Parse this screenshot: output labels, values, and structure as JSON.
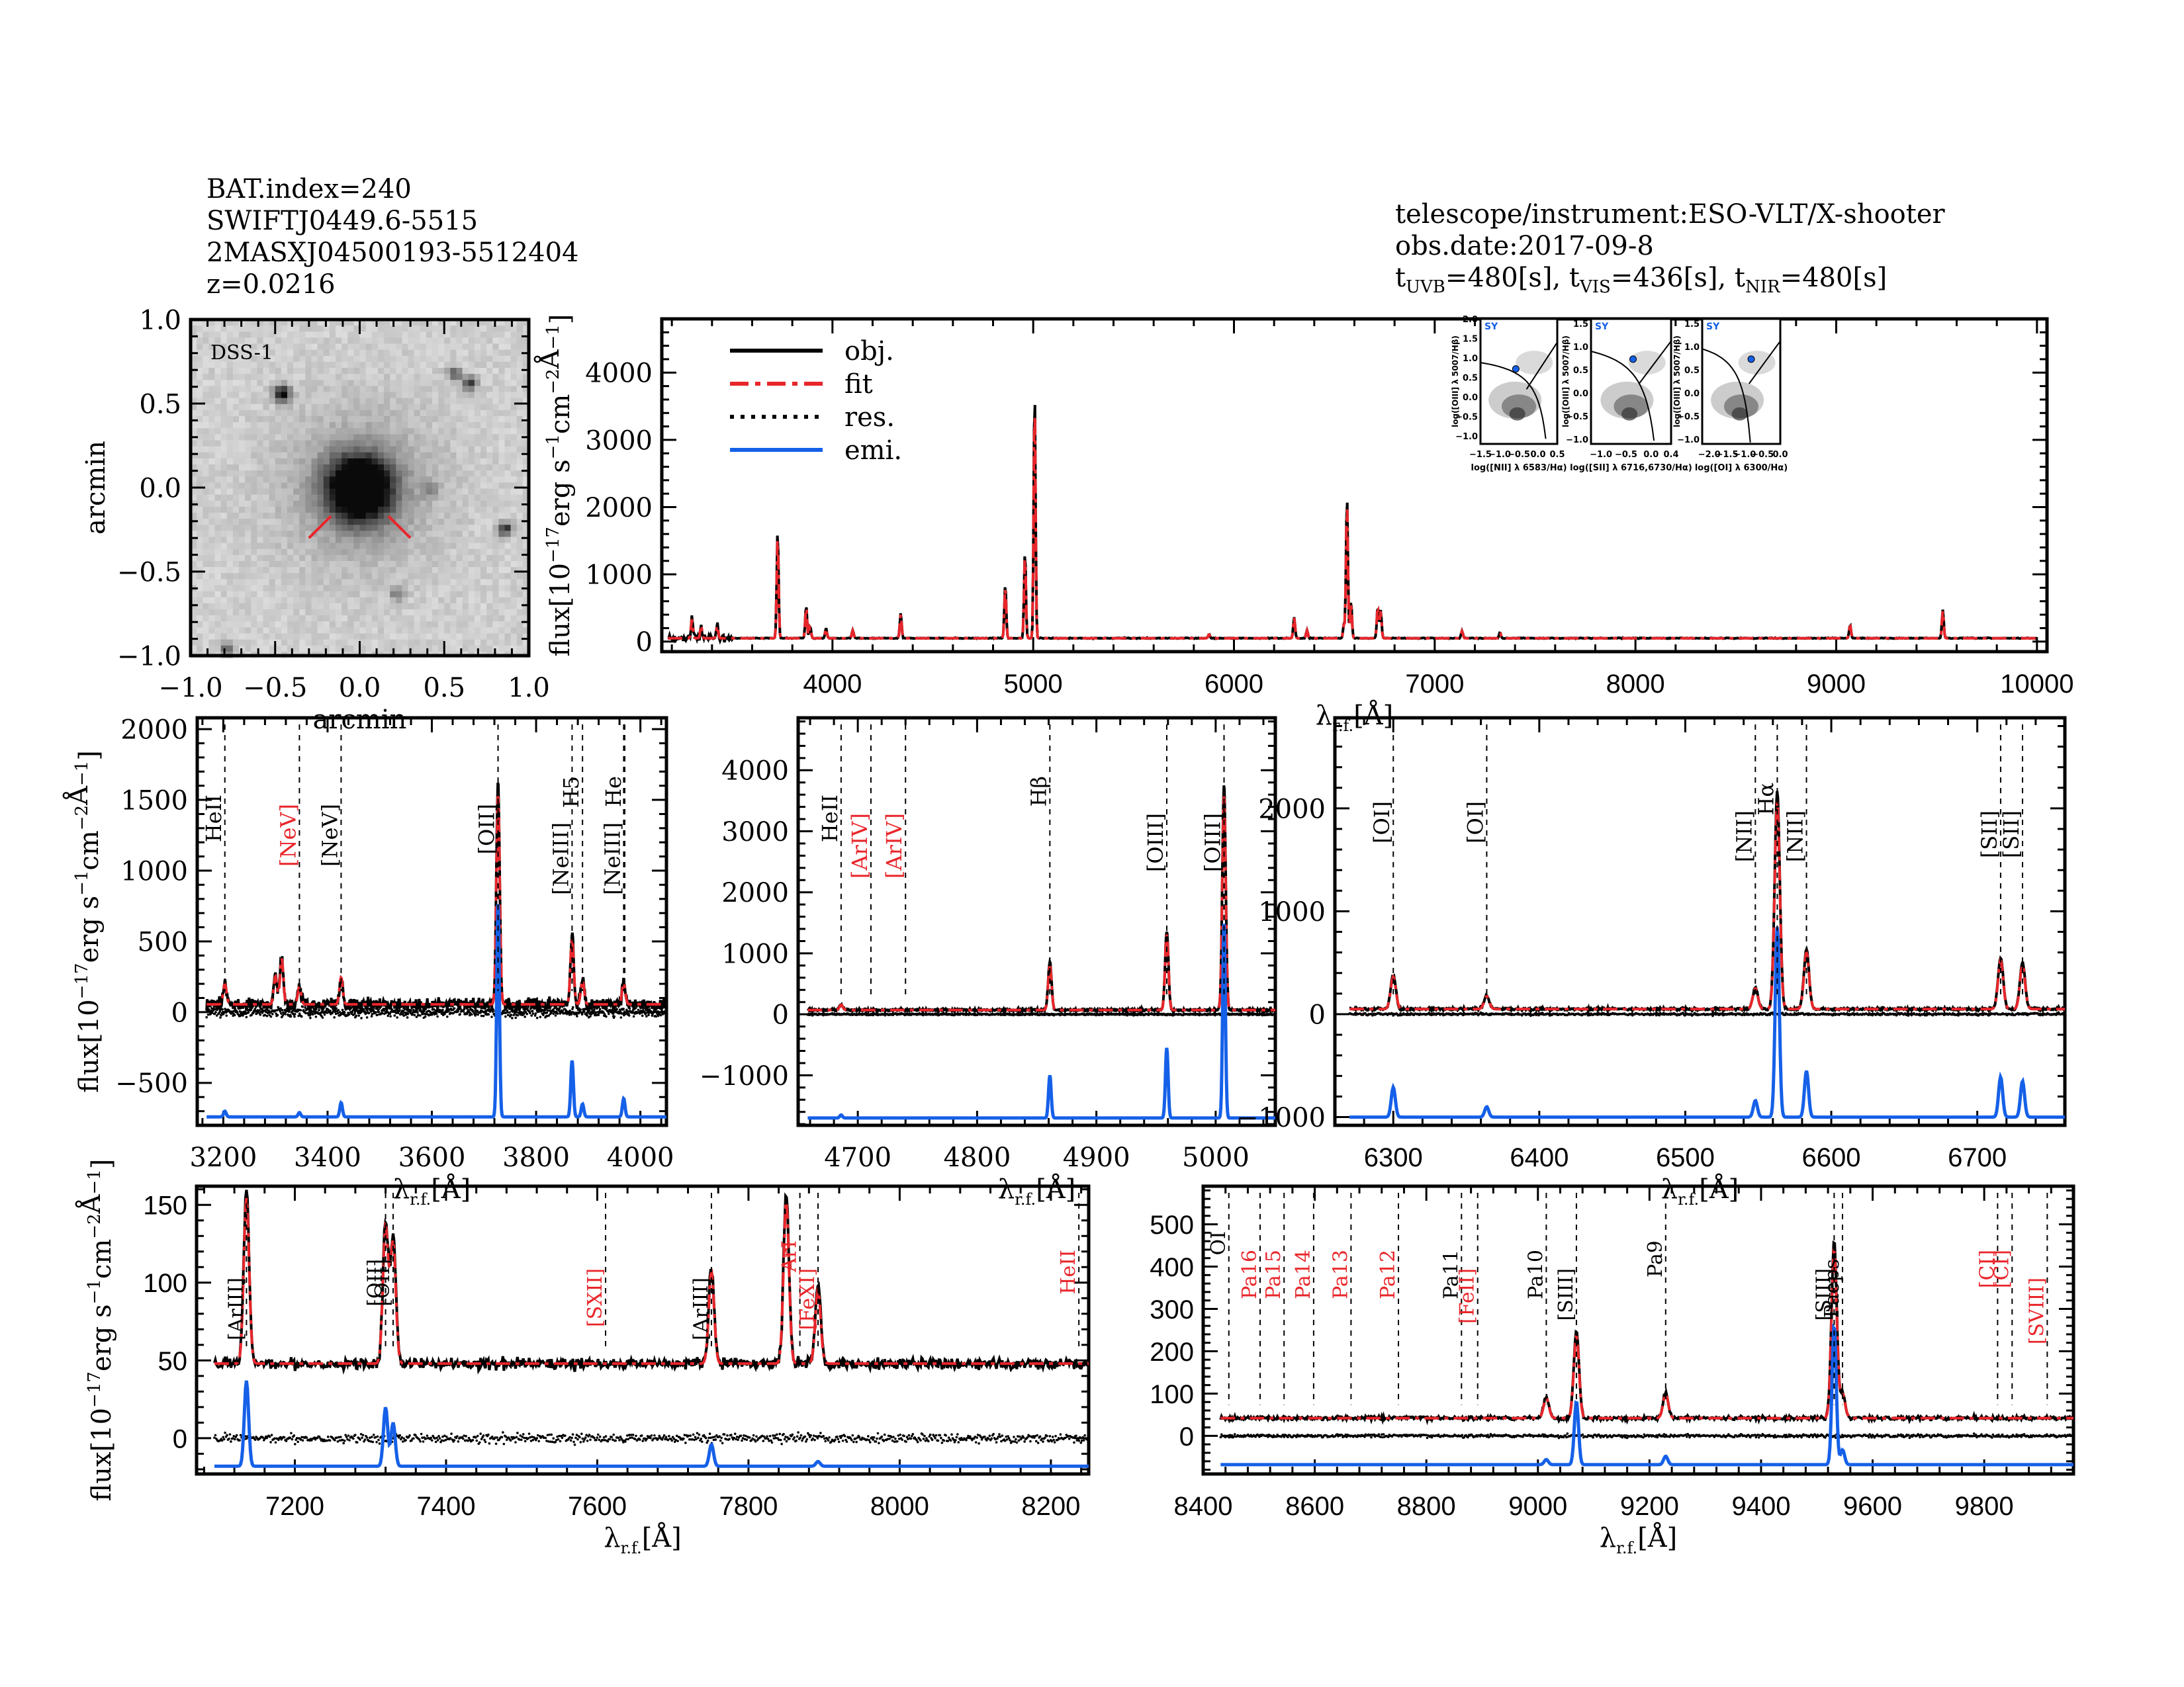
{
  "header_left": {
    "bat_index": "BAT.index=240",
    "swift_name": "SWIFTJ0449.6-5515",
    "counterpart": "2MASXJ04500193-5512404",
    "redshift": "z=0.0216"
  },
  "header_right": {
    "instrument": "telescope/instrument:ESO-VLT/X-shooter",
    "obs_date": "obs.date:2017-09-8",
    "exposure": [
      {
        "band": "UVB",
        "value": "=480[s]"
      },
      {
        "band": "VIS",
        "value": "=436[s]"
      },
      {
        "band": "NIR",
        "value": "=480[s]"
      }
    ]
  },
  "colors": {
    "obj": "#000000",
    "fit": "#e8262b",
    "res": "#000000",
    "emi": "#1560e8",
    "red_label": "#e8262b",
    "sy_label": "#1560e8"
  },
  "chart_data": [
    {
      "id": "dss-image",
      "type": "image",
      "title": "DSS-1",
      "xlabel": "arcmin",
      "ylabel": "arcmin",
      "xlim": [
        -1.0,
        1.0
      ],
      "ylim": [
        -1.0,
        1.0
      ],
      "xticks": [
        "-1.0",
        "-0.5",
        "0.0",
        "0.5",
        "1.0"
      ],
      "yticks": [
        "-1.0",
        "-0.5",
        "0.0",
        "0.5",
        "1.0"
      ],
      "sources": [
        {
          "x": 0.0,
          "y": 0.0,
          "brightness": 1.0,
          "size": 0.13
        },
        {
          "x": -0.46,
          "y": 0.56,
          "brightness": 0.85,
          "size": 0.035
        },
        {
          "x": 0.56,
          "y": 0.68,
          "brightness": 0.5,
          "size": 0.03
        },
        {
          "x": 0.65,
          "y": 0.62,
          "brightness": 0.65,
          "size": 0.03
        },
        {
          "x": 0.86,
          "y": -0.24,
          "brightness": 0.7,
          "size": 0.03
        },
        {
          "x": 0.42,
          "y": -0.01,
          "brightness": 0.3,
          "size": 0.03
        },
        {
          "x": 0.22,
          "y": -0.62,
          "brightness": 0.35,
          "size": 0.03
        },
        {
          "x": -0.78,
          "y": -0.95,
          "brightness": 0.5,
          "size": 0.03
        }
      ]
    },
    {
      "id": "full-spectrum",
      "type": "line",
      "xlabel": "λr.f.[Å]",
      "ylabel": "flux[10⁻¹⁷erg s⁻¹cm⁻²Å⁻¹]",
      "xlim": [
        3150,
        10050
      ],
      "ylim": [
        -150,
        4800
      ],
      "xticks": [
        4000,
        5000,
        6000,
        7000,
        8000,
        9000,
        10000
      ],
      "yticks": [
        0,
        1000,
        2000,
        3000,
        4000
      ],
      "continuum": 50,
      "legend": [
        {
          "label": "obj.",
          "style": "solid-black"
        },
        {
          "label": "fit",
          "style": "dashdot-red"
        },
        {
          "label": "res.",
          "style": "dotted-black"
        },
        {
          "label": "emi.",
          "style": "solid-blue"
        }
      ],
      "legend_position": "top-left",
      "peaks": [
        {
          "x": 3300,
          "y": 300
        },
        {
          "x": 3346,
          "y": 200
        },
        {
          "x": 3426,
          "y": 200
        },
        {
          "x": 3727,
          "y": 1600
        },
        {
          "x": 3869,
          "y": 490
        },
        {
          "x": 3889,
          "y": 180
        },
        {
          "x": 3968,
          "y": 150
        },
        {
          "x": 4101,
          "y": 120
        },
        {
          "x": 4340,
          "y": 370
        },
        {
          "x": 4861,
          "y": 810
        },
        {
          "x": 4959,
          "y": 1290
        },
        {
          "x": 5007,
          "y": 3700
        },
        {
          "x": 5876,
          "y": 60
        },
        {
          "x": 6300,
          "y": 320
        },
        {
          "x": 6364,
          "y": 120
        },
        {
          "x": 6548,
          "y": 210
        },
        {
          "x": 6563,
          "y": 2120
        },
        {
          "x": 6583,
          "y": 560
        },
        {
          "x": 6716,
          "y": 470
        },
        {
          "x": 6731,
          "y": 420
        },
        {
          "x": 7136,
          "y": 110
        },
        {
          "x": 7325,
          "y": 90
        },
        {
          "x": 9069,
          "y": 200
        },
        {
          "x": 9531,
          "y": 420
        }
      ],
      "insets": [
        {
          "id": "bpt-nii",
          "label": "SY",
          "xlabel": "log([NII] λ 6583/Hα)",
          "ylabel": "log([OIII] λ 5007/Hβ)",
          "xlim": [
            -1.5,
            0.5
          ],
          "ylim": [
            -1.2,
            2.0
          ],
          "xticks": [
            -1.5,
            -1.0,
            -0.5,
            0.0,
            0.5
          ],
          "yticks": [
            -1.0,
            -0.5,
            0.0,
            0.5,
            1.0,
            1.5,
            2.0
          ],
          "point": {
            "x": -0.58,
            "y": 0.72
          }
        },
        {
          "id": "bpt-sii",
          "label": "SY",
          "xlabel": "log([SII] λ 6716,6730/Hα)",
          "ylabel": "log([OIII] λ 5007/Hβ)",
          "xlim": [
            -1.2,
            0.4
          ],
          "ylim": [
            -1.1,
            1.6
          ],
          "xticks": [
            -1.0,
            -0.5,
            0.0,
            0.4
          ],
          "yticks": [
            -1.0,
            -0.5,
            0.0,
            0.5,
            1.0,
            1.5
          ],
          "point": {
            "x": -0.36,
            "y": 0.73
          }
        },
        {
          "id": "bpt-oi",
          "label": "SY",
          "xlabel": "log([OI] λ 6300/Hα)",
          "ylabel": "log([OIII] λ 5007/Hβ)",
          "xlim": [
            -2.2,
            0.0
          ],
          "ylim": [
            -1.1,
            1.6
          ],
          "xticks": [
            -2.0,
            -1.5,
            -1.0,
            -0.5,
            0.0
          ],
          "yticks": [
            -1.0,
            -0.5,
            0.0,
            0.5,
            1.0,
            1.5
          ],
          "point": {
            "x": -0.82,
            "y": 0.73
          }
        }
      ]
    },
    {
      "id": "zoom-3200-4000",
      "type": "line",
      "xlabel": "λr.f.[Å]",
      "ylabel": "flux[10⁻¹⁷erg s⁻¹cm⁻²Å⁻¹]",
      "xlim": [
        3150,
        4050
      ],
      "ylim": [
        -800,
        2080
      ],
      "xticks": [
        3200,
        3400,
        3600,
        3800,
        4000
      ],
      "yticks": [
        -500,
        0,
        500,
        1000,
        1500,
        2000
      ],
      "continuum": 55,
      "emi_offset": -740,
      "noise": 35,
      "lines": [
        {
          "label": "HeII",
          "x": 3203,
          "color": "black"
        },
        {
          "label": "[NeV]",
          "x": 3346,
          "color": "red"
        },
        {
          "label": "[NeV]",
          "x": 3426,
          "color": "black"
        },
        {
          "label": "[OII]",
          "x": 3727,
          "color": "black"
        },
        {
          "label": "[NeIII]",
          "x": 3869,
          "color": "black"
        },
        {
          "label": "H5",
          "x": 3889,
          "color": "black"
        },
        {
          "label": "[NeIII]",
          "x": 3968,
          "color": "black"
        },
        {
          "label": "He",
          "x": 3970,
          "color": "black"
        }
      ],
      "peaks": [
        {
          "x": 3203,
          "obj": 150,
          "emi": 40
        },
        {
          "x": 3300,
          "obj": 210,
          "emi": 0
        },
        {
          "x": 3312,
          "obj": 340,
          "emi": 0
        },
        {
          "x": 3346,
          "obj": 130,
          "emi": 30
        },
        {
          "x": 3426,
          "obj": 200,
          "emi": 100
        },
        {
          "x": 3727,
          "obj": 1560,
          "emi": 1520
        },
        {
          "x": 3869,
          "obj": 490,
          "emi": 400
        },
        {
          "x": 3889,
          "obj": 180,
          "emi": 90
        },
        {
          "x": 3968,
          "obj": 160,
          "emi": 130
        }
      ]
    },
    {
      "id": "zoom-hbeta-oiii",
      "type": "line",
      "xlabel": "λr.f.[Å]",
      "ylabel": "",
      "xlim": [
        4650,
        5050
      ],
      "ylim": [
        -1820,
        4860
      ],
      "xticks": [
        4700,
        4800,
        4900,
        5000
      ],
      "yticks": [
        -1000,
        0,
        1000,
        2000,
        3000,
        4000
      ],
      "continuum": 70,
      "emi_offset": -1700,
      "noise": 15,
      "lines": [
        {
          "label": "HeII",
          "x": 4686,
          "color": "black"
        },
        {
          "label": "[ArIV]",
          "x": 4711,
          "color": "red"
        },
        {
          "label": "[ArIV]",
          "x": 4740,
          "color": "red"
        },
        {
          "label": "Hβ",
          "x": 4861,
          "color": "black"
        },
        {
          "label": "[OIII]",
          "x": 4959,
          "color": "black"
        },
        {
          "label": "[OIII]",
          "x": 5007,
          "color": "black"
        }
      ],
      "peaks": [
        {
          "x": 4686,
          "obj": 90,
          "emi": 50
        },
        {
          "x": 4861,
          "obj": 800,
          "emi": 700
        },
        {
          "x": 4959,
          "obj": 1300,
          "emi": 1150
        },
        {
          "x": 5007,
          "obj": 3700,
          "emi": 3200
        }
      ]
    },
    {
      "id": "zoom-halpha",
      "type": "line",
      "xlabel": "λr.f.[Å]",
      "ylabel": "",
      "xlim": [
        6260,
        6760
      ],
      "ylim": [
        -1080,
        2880
      ],
      "xticks": [
        6300,
        6400,
        6500,
        6600,
        6700
      ],
      "yticks": [
        -1000,
        0,
        1000,
        2000
      ],
      "continuum": 50,
      "emi_offset": -1000,
      "noise": 12,
      "lines": [
        {
          "label": "[OI]",
          "x": 6300,
          "color": "black"
        },
        {
          "label": "[OI]",
          "x": 6364,
          "color": "black"
        },
        {
          "label": "[NII]",
          "x": 6548,
          "color": "black"
        },
        {
          "label": "Hα",
          "x": 6563,
          "color": "black"
        },
        {
          "label": "[NII]",
          "x": 6583,
          "color": "black"
        },
        {
          "label": "[SII]",
          "x": 6716,
          "color": "black"
        },
        {
          "label": "[SII]",
          "x": 6731,
          "color": "black"
        }
      ],
      "peaks": [
        {
          "x": 6300,
          "obj": 330,
          "emi": 290
        },
        {
          "x": 6364,
          "obj": 130,
          "emi": 100
        },
        {
          "x": 6548,
          "obj": 210,
          "emi": 160
        },
        {
          "x": 6563,
          "obj": 2120,
          "emi": 1850
        },
        {
          "x": 6583,
          "obj": 580,
          "emi": 450
        },
        {
          "x": 6716,
          "obj": 500,
          "emi": 390
        },
        {
          "x": 6731,
          "obj": 450,
          "emi": 350
        }
      ]
    },
    {
      "id": "zoom-7100-8250",
      "type": "line",
      "xlabel": "λr.f.[Å]",
      "ylabel": "flux[10⁻¹⁷erg s⁻¹cm⁻²Å⁻¹]",
      "xlim": [
        7070,
        8250
      ],
      "ylim": [
        -23,
        162
      ],
      "xticks": [
        7200,
        7400,
        7600,
        7800,
        8000,
        8200
      ],
      "yticks": [
        0,
        50,
        100,
        150
      ],
      "continuum": 48,
      "emi_offset": -18,
      "noise": 3,
      "lines": [
        {
          "label": "[ArIII]",
          "x": 7136,
          "color": "black"
        },
        {
          "label": "[OII]",
          "x": 7320,
          "color": "black"
        },
        {
          "label": "[OII]",
          "x": 7330,
          "color": "black"
        },
        {
          "label": "[SXII]",
          "x": 7611,
          "color": "red"
        },
        {
          "label": "[ArIII]",
          "x": 7751,
          "color": "black"
        },
        {
          "label": "ArI",
          "x": 7868,
          "color": "red"
        },
        {
          "label": "[FeXI]",
          "x": 7892,
          "color": "red"
        },
        {
          "label": "HeII",
          "x": 8237,
          "color": "red"
        }
      ],
      "peaks": [
        {
          "x": 7136,
          "obj": 112,
          "emi": 55
        },
        {
          "x": 7320,
          "obj": 92,
          "emi": 38
        },
        {
          "x": 7330,
          "obj": 82,
          "emi": 28
        },
        {
          "x": 7751,
          "obj": 62,
          "emi": 14
        },
        {
          "x": 7850,
          "obj": 110,
          "emi": 0
        },
        {
          "x": 7892,
          "obj": 50,
          "emi": 3
        }
      ]
    },
    {
      "id": "zoom-8400-9950",
      "type": "line",
      "xlabel": "λr.f.[Å]",
      "ylabel": "",
      "xlim": [
        8400,
        9960
      ],
      "ylim": [
        -90,
        590
      ],
      "xticks": [
        8400,
        8600,
        8800,
        9000,
        9200,
        9400,
        9600,
        9800
      ],
      "yticks": [
        0,
        100,
        200,
        300,
        400,
        500
      ],
      "continuum": 42,
      "emi_offset": -68,
      "noise": 4,
      "lines": [
        {
          "label": "OI",
          "x": 8446,
          "color": "black"
        },
        {
          "label": "Pa16",
          "x": 8502,
          "color": "red"
        },
        {
          "label": "Pa15",
          "x": 8545,
          "color": "red"
        },
        {
          "label": "Pa14",
          "x": 8598,
          "color": "red"
        },
        {
          "label": "Pa13",
          "x": 8665,
          "color": "red"
        },
        {
          "label": "Pa12",
          "x": 8750,
          "color": "red"
        },
        {
          "label": "Pa11",
          "x": 8863,
          "color": "black"
        },
        {
          "label": "[FeII]",
          "x": 8892,
          "color": "red"
        },
        {
          "label": "Pa10",
          "x": 9015,
          "color": "black"
        },
        {
          "label": "[SIII]",
          "x": 9069,
          "color": "black"
        },
        {
          "label": "Pa9",
          "x": 9229,
          "color": "black"
        },
        {
          "label": "[SIII]",
          "x": 9531,
          "color": "black"
        },
        {
          "label": "Paeps",
          "x": 9546,
          "color": "black"
        },
        {
          "label": "[CI]",
          "x": 9824,
          "color": "red"
        },
        {
          "label": "[CI]",
          "x": 9850,
          "color": "red"
        },
        {
          "label": "[SVIII]",
          "x": 9913,
          "color": "red"
        }
      ],
      "peaks": [
        {
          "x": 9015,
          "obj": 50,
          "emi": 12
        },
        {
          "x": 9069,
          "obj": 205,
          "emi": 150
        },
        {
          "x": 9229,
          "obj": 60,
          "emi": 20
        },
        {
          "x": 9531,
          "obj": 420,
          "emi": 330
        },
        {
          "x": 9546,
          "obj": 60,
          "emi": 35
        }
      ]
    }
  ]
}
